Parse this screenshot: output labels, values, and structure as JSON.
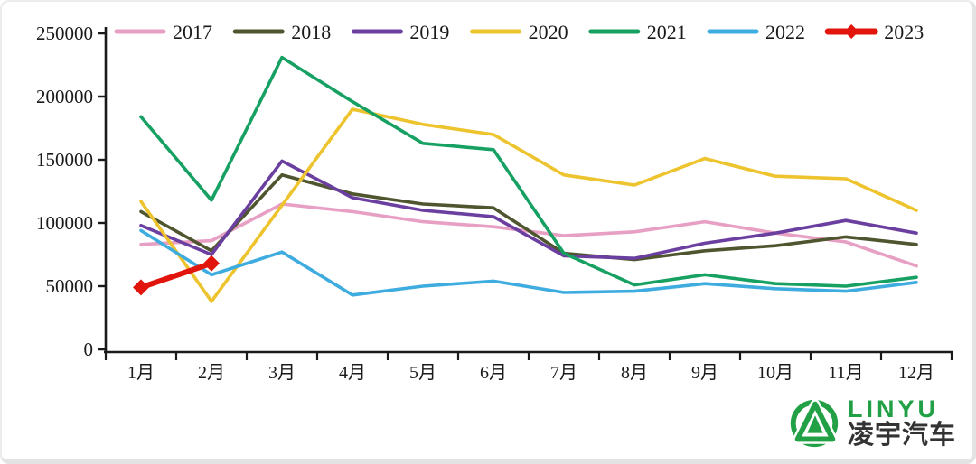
{
  "page": {
    "background": "#ffffff",
    "axis_color": "#1a1a1a",
    "text_color": "#1a1a1a"
  },
  "chart_data": {
    "type": "line",
    "categories": [
      "1月",
      "2月",
      "3月",
      "4月",
      "5月",
      "6月",
      "7月",
      "8月",
      "9月",
      "10月",
      "11月",
      "12月"
    ],
    "series": [
      {
        "name": "2017",
        "color": "#e79fc4",
        "values": [
          83000,
          86000,
          115000,
          109000,
          101000,
          97000,
          90000,
          93000,
          101000,
          92000,
          85000,
          66000
        ]
      },
      {
        "name": "2018",
        "color": "#4f562f",
        "values": [
          109000,
          78000,
          138000,
          123000,
          115000,
          112000,
          76000,
          71000,
          78000,
          82000,
          89000,
          83000
        ]
      },
      {
        "name": "2019",
        "color": "#6b3fa0",
        "values": [
          98000,
          75000,
          149000,
          120000,
          110000,
          105000,
          74000,
          72000,
          84000,
          92000,
          102000,
          92000
        ]
      },
      {
        "name": "2020",
        "color": "#edc32e",
        "values": [
          117000,
          38000,
          114000,
          190000,
          178000,
          170000,
          138000,
          130000,
          151000,
          137000,
          135000,
          110000
        ]
      },
      {
        "name": "2021",
        "color": "#16a163",
        "values": [
          184000,
          118000,
          231000,
          196000,
          163000,
          158000,
          76000,
          51000,
          59000,
          52000,
          50000,
          57000
        ]
      },
      {
        "name": "2022",
        "color": "#3face0",
        "values": [
          94000,
          59000,
          77000,
          43000,
          50000,
          54000,
          45000,
          46000,
          52000,
          48000,
          46000,
          53000
        ]
      },
      {
        "name": "2023",
        "color": "#e2150d",
        "values": [
          49000,
          68000
        ],
        "marker": "diamond",
        "thick": true
      }
    ],
    "title": "",
    "xlabel": "",
    "ylabel": "",
    "ylim": [
      0,
      250000
    ],
    "ytick_interval": 50000,
    "ytick_labels": [
      "0",
      "50000",
      "100000",
      "150000",
      "200000",
      "250000"
    ],
    "grid": false,
    "legend_position": "top"
  },
  "logo": {
    "brand": "LINYU",
    "subtitle": "凌宇汽车",
    "brand_color": "#22a045",
    "subtitle_color": "#333333",
    "emblem": "circle-A-icon"
  }
}
